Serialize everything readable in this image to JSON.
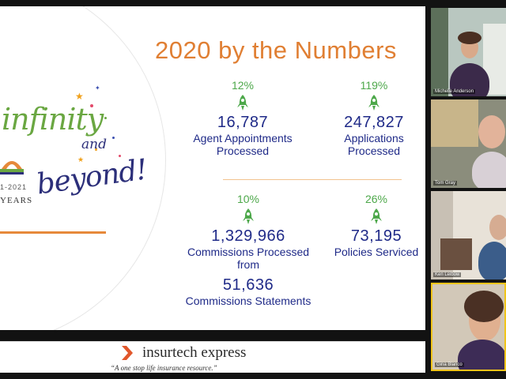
{
  "slide": {
    "title": "2020 by the Numbers",
    "theme": {
      "word_infinity": "infinity",
      "word_and": "and",
      "word_beyond": "beyond!",
      "years_dates": "1-2021",
      "years_label": "YEARS"
    },
    "stats": [
      {
        "pct": "12%",
        "value": "16,787",
        "label_lines": [
          "Agent Appointments",
          "Processed"
        ]
      },
      {
        "pct": "119%",
        "value": "247,827",
        "label_lines": [
          "Applications",
          "Processed"
        ]
      },
      {
        "pct": "10%",
        "value": "1,329,966",
        "label_lines": [
          "Commissions Processed",
          "from"
        ]
      },
      {
        "pct": "26%",
        "value": "73,195",
        "label_lines": [
          "Policies Serviced"
        ]
      }
    ],
    "extra_stat": {
      "value": "51,636",
      "label": "Commissions Statements"
    },
    "colors": {
      "title": "#e07f33",
      "numbers": "#1f2a88",
      "percent": "#4da84a"
    }
  },
  "footer": {
    "brand": "insurtech express",
    "tagline": "“A one stop life insurance resource.”"
  },
  "participants": [
    {
      "name": "Michelle Anderson",
      "active": false
    },
    {
      "name": "Tom Gray",
      "active": false
    },
    {
      "name": "Ken Leibow",
      "active": false
    },
    {
      "name": "Gina Blanco",
      "active": true
    }
  ]
}
